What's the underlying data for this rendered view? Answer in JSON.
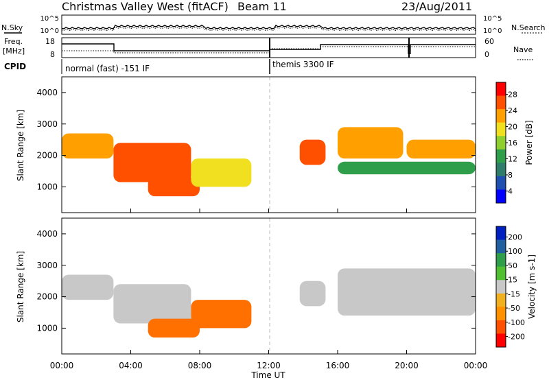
{
  "header": {
    "station": "Christmas Valley West (fitACF)",
    "beam": "Beam 11",
    "date": "23/Aug/2011"
  },
  "noise_panel": {
    "left_label": "N.Sky",
    "right_label": "N.Search",
    "left_ticks": [
      "10^5",
      "10^0"
    ],
    "right_ticks": [
      "10^5",
      "10^0"
    ]
  },
  "freq_panel": {
    "left_label_top": "Freq.",
    "left_label_bottom": "[MHz]",
    "right_label": "Nave",
    "left_ticks": [
      "18",
      "8"
    ],
    "right_ticks": [
      "60",
      "0"
    ]
  },
  "cpid_panel": {
    "label": "CPID",
    "modes": [
      "normal (fast) -151 IF",
      "themis 3300 IF"
    ]
  },
  "power_panel": {
    "ylabel": "Slant Range [km]",
    "yticks": [
      "4000",
      "3000",
      "2000",
      "1000"
    ],
    "colorbar_label": "Power [dB]",
    "colorbar_ticks": [
      "28",
      "24",
      "20",
      "16",
      "12",
      "8",
      "4"
    ]
  },
  "velocity_panel": {
    "ylabel": "Slant Range [km]",
    "yticks": [
      "4000",
      "3000",
      "2000",
      "1000"
    ],
    "colorbar_label": "Velocity [m s-1]",
    "colorbar_ticks": [
      "200",
      "100",
      "50",
      "15",
      "-15",
      "-50",
      "-100",
      "-200"
    ]
  },
  "xaxis": {
    "label": "Time UT",
    "ticks": [
      "00:00",
      "04:00",
      "08:00",
      "12:00",
      "16:00",
      "20:00",
      "00:00"
    ]
  },
  "chart_data": [
    {
      "type": "heatmap",
      "title": "Christmas Valley West (fitACF)",
      "xlabel": "Time UT",
      "ylabel": "Slant Range [km]",
      "colorbar": "Power [dB]",
      "xlim": [
        0,
        24
      ],
      "ylim": [
        180,
        4500
      ],
      "clim": [
        0,
        30
      ],
      "regions": [
        {
          "t": [
            0.0,
            3.0
          ],
          "range": [
            1900,
            2700
          ],
          "power": 24
        },
        {
          "t": [
            3.0,
            7.5
          ],
          "range": [
            1150,
            2400
          ],
          "power": 27
        },
        {
          "t": [
            5.0,
            8.0
          ],
          "range": [
            700,
            1300
          ],
          "power": 26
        },
        {
          "t": [
            7.5,
            11.0
          ],
          "range": [
            1000,
            1900
          ],
          "power": 18
        },
        {
          "t": [
            13.8,
            15.3
          ],
          "range": [
            1700,
            2500
          ],
          "power": 25
        },
        {
          "t": [
            16.0,
            19.8
          ],
          "range": [
            1900,
            2900
          ],
          "power": 23
        },
        {
          "t": [
            20.0,
            24.0
          ],
          "range": [
            1900,
            2500
          ],
          "power": 24
        },
        {
          "t": [
            16.0,
            24.0
          ],
          "range": [
            1400,
            1800
          ],
          "power": 12
        }
      ]
    },
    {
      "type": "heatmap",
      "title": "",
      "xlabel": "Time UT",
      "ylabel": "Slant Range [km]",
      "colorbar": "Velocity [m s-1]",
      "xlim": [
        0,
        24
      ],
      "ylim": [
        180,
        4500
      ],
      "clim": [
        -200,
        200
      ],
      "regions": [
        {
          "t": [
            0.0,
            3.0
          ],
          "range": [
            1900,
            2700
          ],
          "velocity": 0
        },
        {
          "t": [
            3.0,
            7.5
          ],
          "range": [
            1150,
            2400
          ],
          "velocity": 0
        },
        {
          "t": [
            5.0,
            8.0
          ],
          "range": [
            700,
            1300
          ],
          "velocity": -60
        },
        {
          "t": [
            7.5,
            11.0
          ],
          "range": [
            1000,
            1900
          ],
          "velocity": -80
        },
        {
          "t": [
            13.8,
            15.3
          ],
          "range": [
            1700,
            2500
          ],
          "velocity": 0
        },
        {
          "t": [
            16.0,
            24.0
          ],
          "range": [
            1400,
            2900
          ],
          "velocity": 0
        }
      ]
    }
  ]
}
